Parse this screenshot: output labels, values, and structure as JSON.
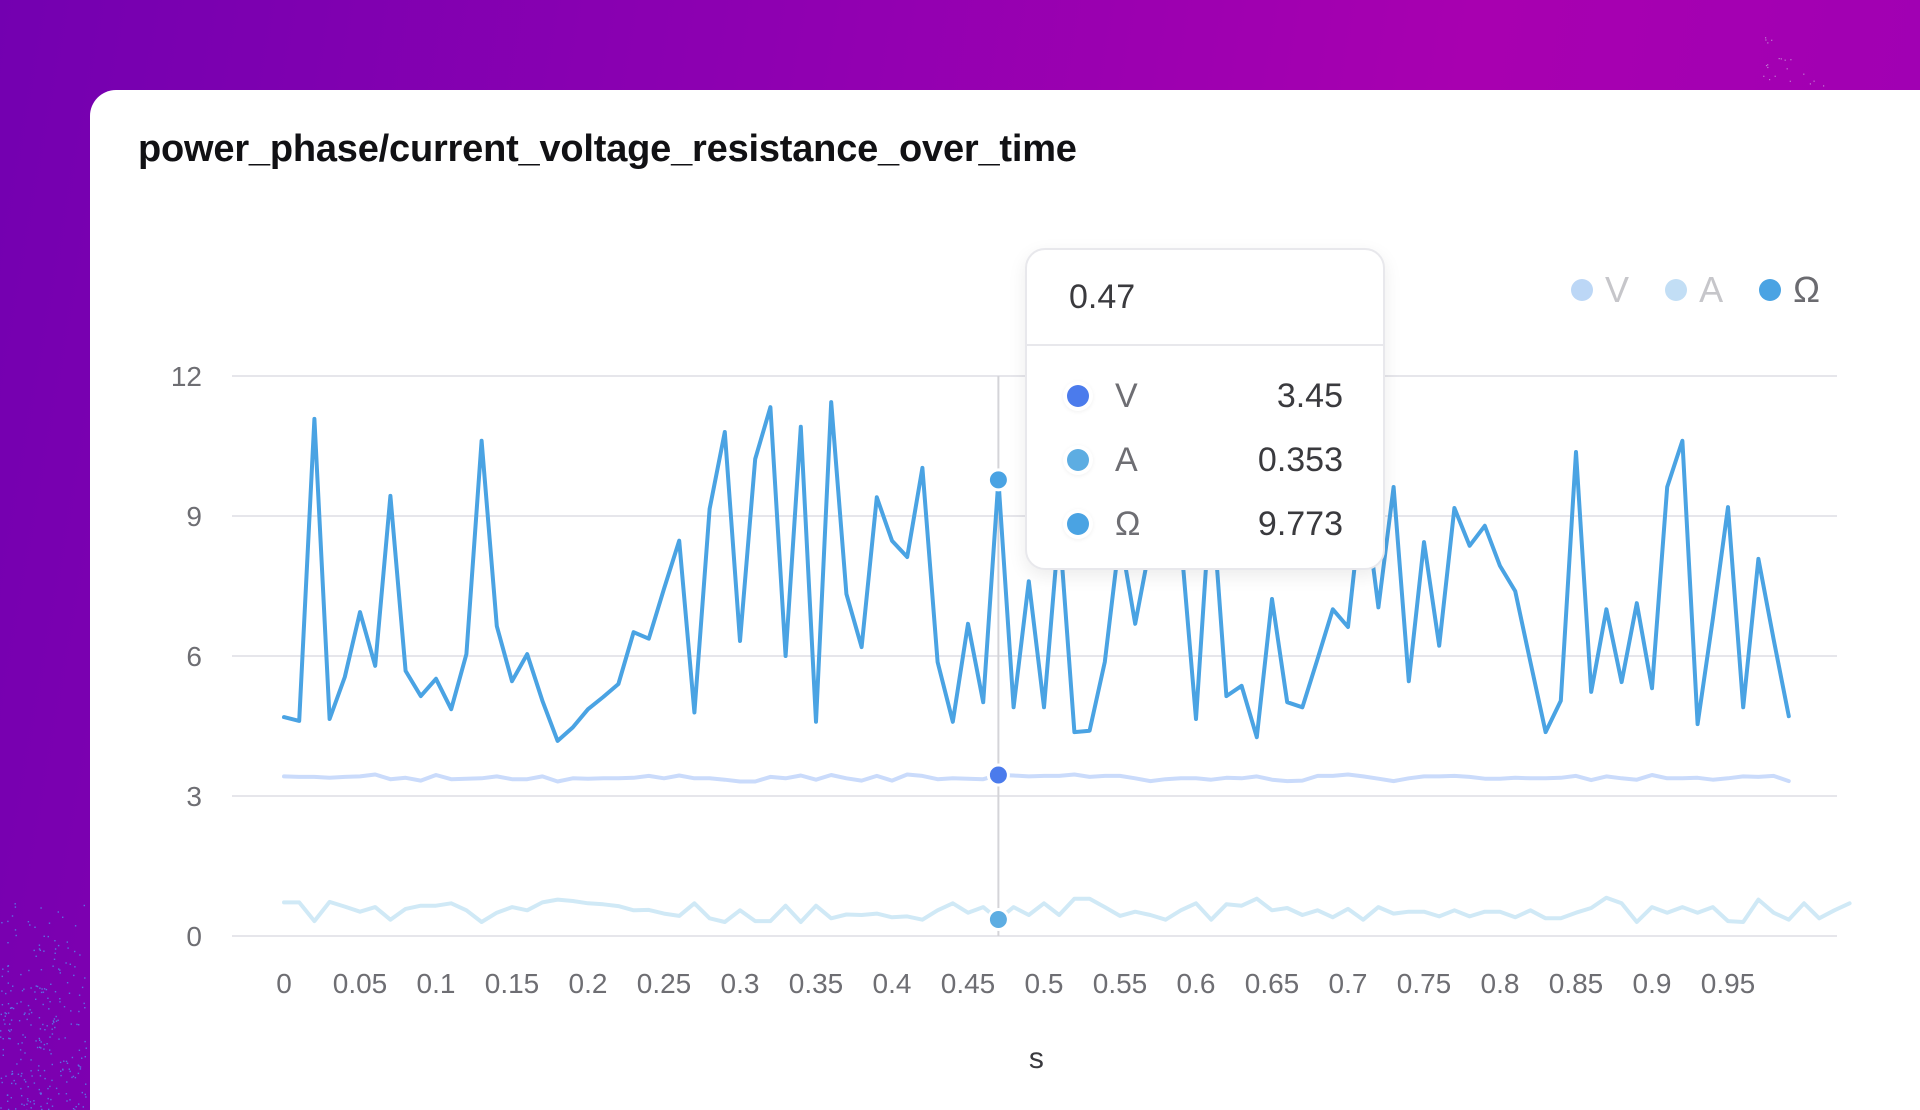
{
  "title": "power_phase/current_voltage_resistance_over_time",
  "colors": {
    "V": "#4b7bec",
    "A": "#5dade2",
    "Ohm": "#4aa3e3",
    "V_faded": "#cadbfb",
    "A_faded": "#d0e9f6",
    "grid": "#e6e6eb",
    "crosshair": "#d4d4d8"
  },
  "legend": [
    {
      "label": "V",
      "active": false,
      "dot": "#bcd7f6",
      "text": "#c6c6ca"
    },
    {
      "label": "A",
      "active": false,
      "dot": "#c2def5",
      "text": "#c6c6ca"
    },
    {
      "label": "Ω",
      "active": true,
      "dot": "#4aa3e3",
      "text": "#6b6b70"
    }
  ],
  "tooltip": {
    "x": "0.47",
    "rows": [
      {
        "name": "V",
        "value": "3.45",
        "color": "#4b7bec"
      },
      {
        "name": "A",
        "value": "0.353",
        "color": "#5dade2"
      },
      {
        "name": "Ω",
        "value": "9.773",
        "color": "#4aa3e3"
      }
    ]
  },
  "chart_data": {
    "type": "line",
    "title": "power_phase/current_voltage_resistance_over_time",
    "xlabel": "s",
    "ylabel": "",
    "ylim": [
      0,
      12
    ],
    "yticks": [
      0,
      3,
      6,
      9,
      12
    ],
    "xticks": [
      "0",
      "0.05",
      "0.1",
      "0.15",
      "0.2",
      "0.25",
      "0.3",
      "0.35",
      "0.4",
      "0.45",
      "0.5",
      "0.55",
      "0.6",
      "0.65",
      "0.7",
      "0.75",
      "0.8",
      "0.85",
      "0.9",
      "0.95"
    ],
    "grid": true,
    "legend_position": "top-right",
    "x": {
      "start": 0,
      "step": 0.01,
      "count": 100
    },
    "hover_index": 47,
    "series": [
      {
        "name": "V",
        "values": [
          3.42,
          3.41,
          3.41,
          3.39,
          3.41,
          3.42,
          3.46,
          3.36,
          3.39,
          3.33,
          3.45,
          3.36,
          3.37,
          3.38,
          3.42,
          3.36,
          3.36,
          3.42,
          3.31,
          3.38,
          3.37,
          3.38,
          3.38,
          3.39,
          3.43,
          3.38,
          3.44,
          3.38,
          3.38,
          3.35,
          3.31,
          3.31,
          3.41,
          3.38,
          3.44,
          3.35,
          3.45,
          3.38,
          3.33,
          3.43,
          3.33,
          3.46,
          3.43,
          3.36,
          3.38,
          3.37,
          3.36,
          3.45,
          3.44,
          3.42,
          3.43,
          3.43,
          3.46,
          3.41,
          3.43,
          3.43,
          3.38,
          3.32,
          3.36,
          3.38,
          3.38,
          3.35,
          3.39,
          3.38,
          3.42,
          3.35,
          3.32,
          3.33,
          3.43,
          3.43,
          3.46,
          3.42,
          3.37,
          3.32,
          3.38,
          3.42,
          3.42,
          3.43,
          3.41,
          3.37,
          3.37,
          3.39,
          3.38,
          3.38,
          3.39,
          3.43,
          3.34,
          3.42,
          3.38,
          3.35,
          3.45,
          3.38,
          3.38,
          3.39,
          3.35,
          3.38,
          3.42,
          3.41,
          3.43,
          3.32
        ]
      },
      {
        "name": "A",
        "values": [
          0.72,
          0.72,
          0.32,
          0.73,
          0.63,
          0.52,
          0.62,
          0.35,
          0.58,
          0.65,
          0.65,
          0.7,
          0.55,
          0.3,
          0.5,
          0.62,
          0.55,
          0.72,
          0.78,
          0.75,
          0.7,
          0.68,
          0.64,
          0.55,
          0.56,
          0.48,
          0.43,
          0.7,
          0.38,
          0.3,
          0.55,
          0.32,
          0.32,
          0.65,
          0.3,
          0.65,
          0.38,
          0.46,
          0.45,
          0.48,
          0.4,
          0.42,
          0.35,
          0.55,
          0.7,
          0.5,
          0.62,
          0.353,
          0.62,
          0.45,
          0.7,
          0.45,
          0.8,
          0.8,
          0.62,
          0.43,
          0.52,
          0.45,
          0.35,
          0.55,
          0.7,
          0.35,
          0.68,
          0.65,
          0.8,
          0.55,
          0.6,
          0.45,
          0.55,
          0.4,
          0.58,
          0.35,
          0.62,
          0.48,
          0.52,
          0.52,
          0.42,
          0.55,
          0.42,
          0.52,
          0.52,
          0.4,
          0.55,
          0.38,
          0.38,
          0.5,
          0.6,
          0.82,
          0.7,
          0.3,
          0.62,
          0.5,
          0.62,
          0.5,
          0.62,
          0.32,
          0.3,
          0.78,
          0.5,
          0.35,
          0.7,
          0.38,
          0.55,
          0.7
        ]
      },
      {
        "name": "Ω",
        "values": [
          4.69,
          4.61,
          11.08,
          4.65,
          5.55,
          6.94,
          5.79,
          9.43,
          5.68,
          5.14,
          5.51,
          4.86,
          6.04,
          10.61,
          6.64,
          5.46,
          6.04,
          5.04,
          4.18,
          4.47,
          4.86,
          5.12,
          5.4,
          6.51,
          6.37,
          7.44,
          8.47,
          4.79,
          9.15,
          10.8,
          6.32,
          10.22,
          11.33,
          6.0,
          10.91,
          4.59,
          11.44,
          7.33,
          6.19,
          9.4,
          8.47,
          8.12,
          10.03,
          5.87,
          4.59,
          6.69,
          5.01,
          9.773,
          4.9,
          7.6,
          4.9,
          8.8,
          4.37,
          4.4,
          5.87,
          8.6,
          6.69,
          8.4,
          9.0,
          8.5,
          4.65,
          9.6,
          5.14,
          5.36,
          4.26,
          7.22,
          5.01,
          4.9,
          5.94,
          7.0,
          6.62,
          9.6,
          7.04,
          9.62,
          5.46,
          8.44,
          6.22,
          9.17,
          8.36,
          8.79,
          7.93,
          7.39,
          5.87,
          4.37,
          5.04,
          10.37,
          5.23,
          7.0,
          5.44,
          7.13,
          5.31,
          9.62,
          10.61,
          4.54,
          6.79,
          9.19,
          4.9,
          8.08,
          6.36,
          4.71
        ]
      }
    ]
  }
}
